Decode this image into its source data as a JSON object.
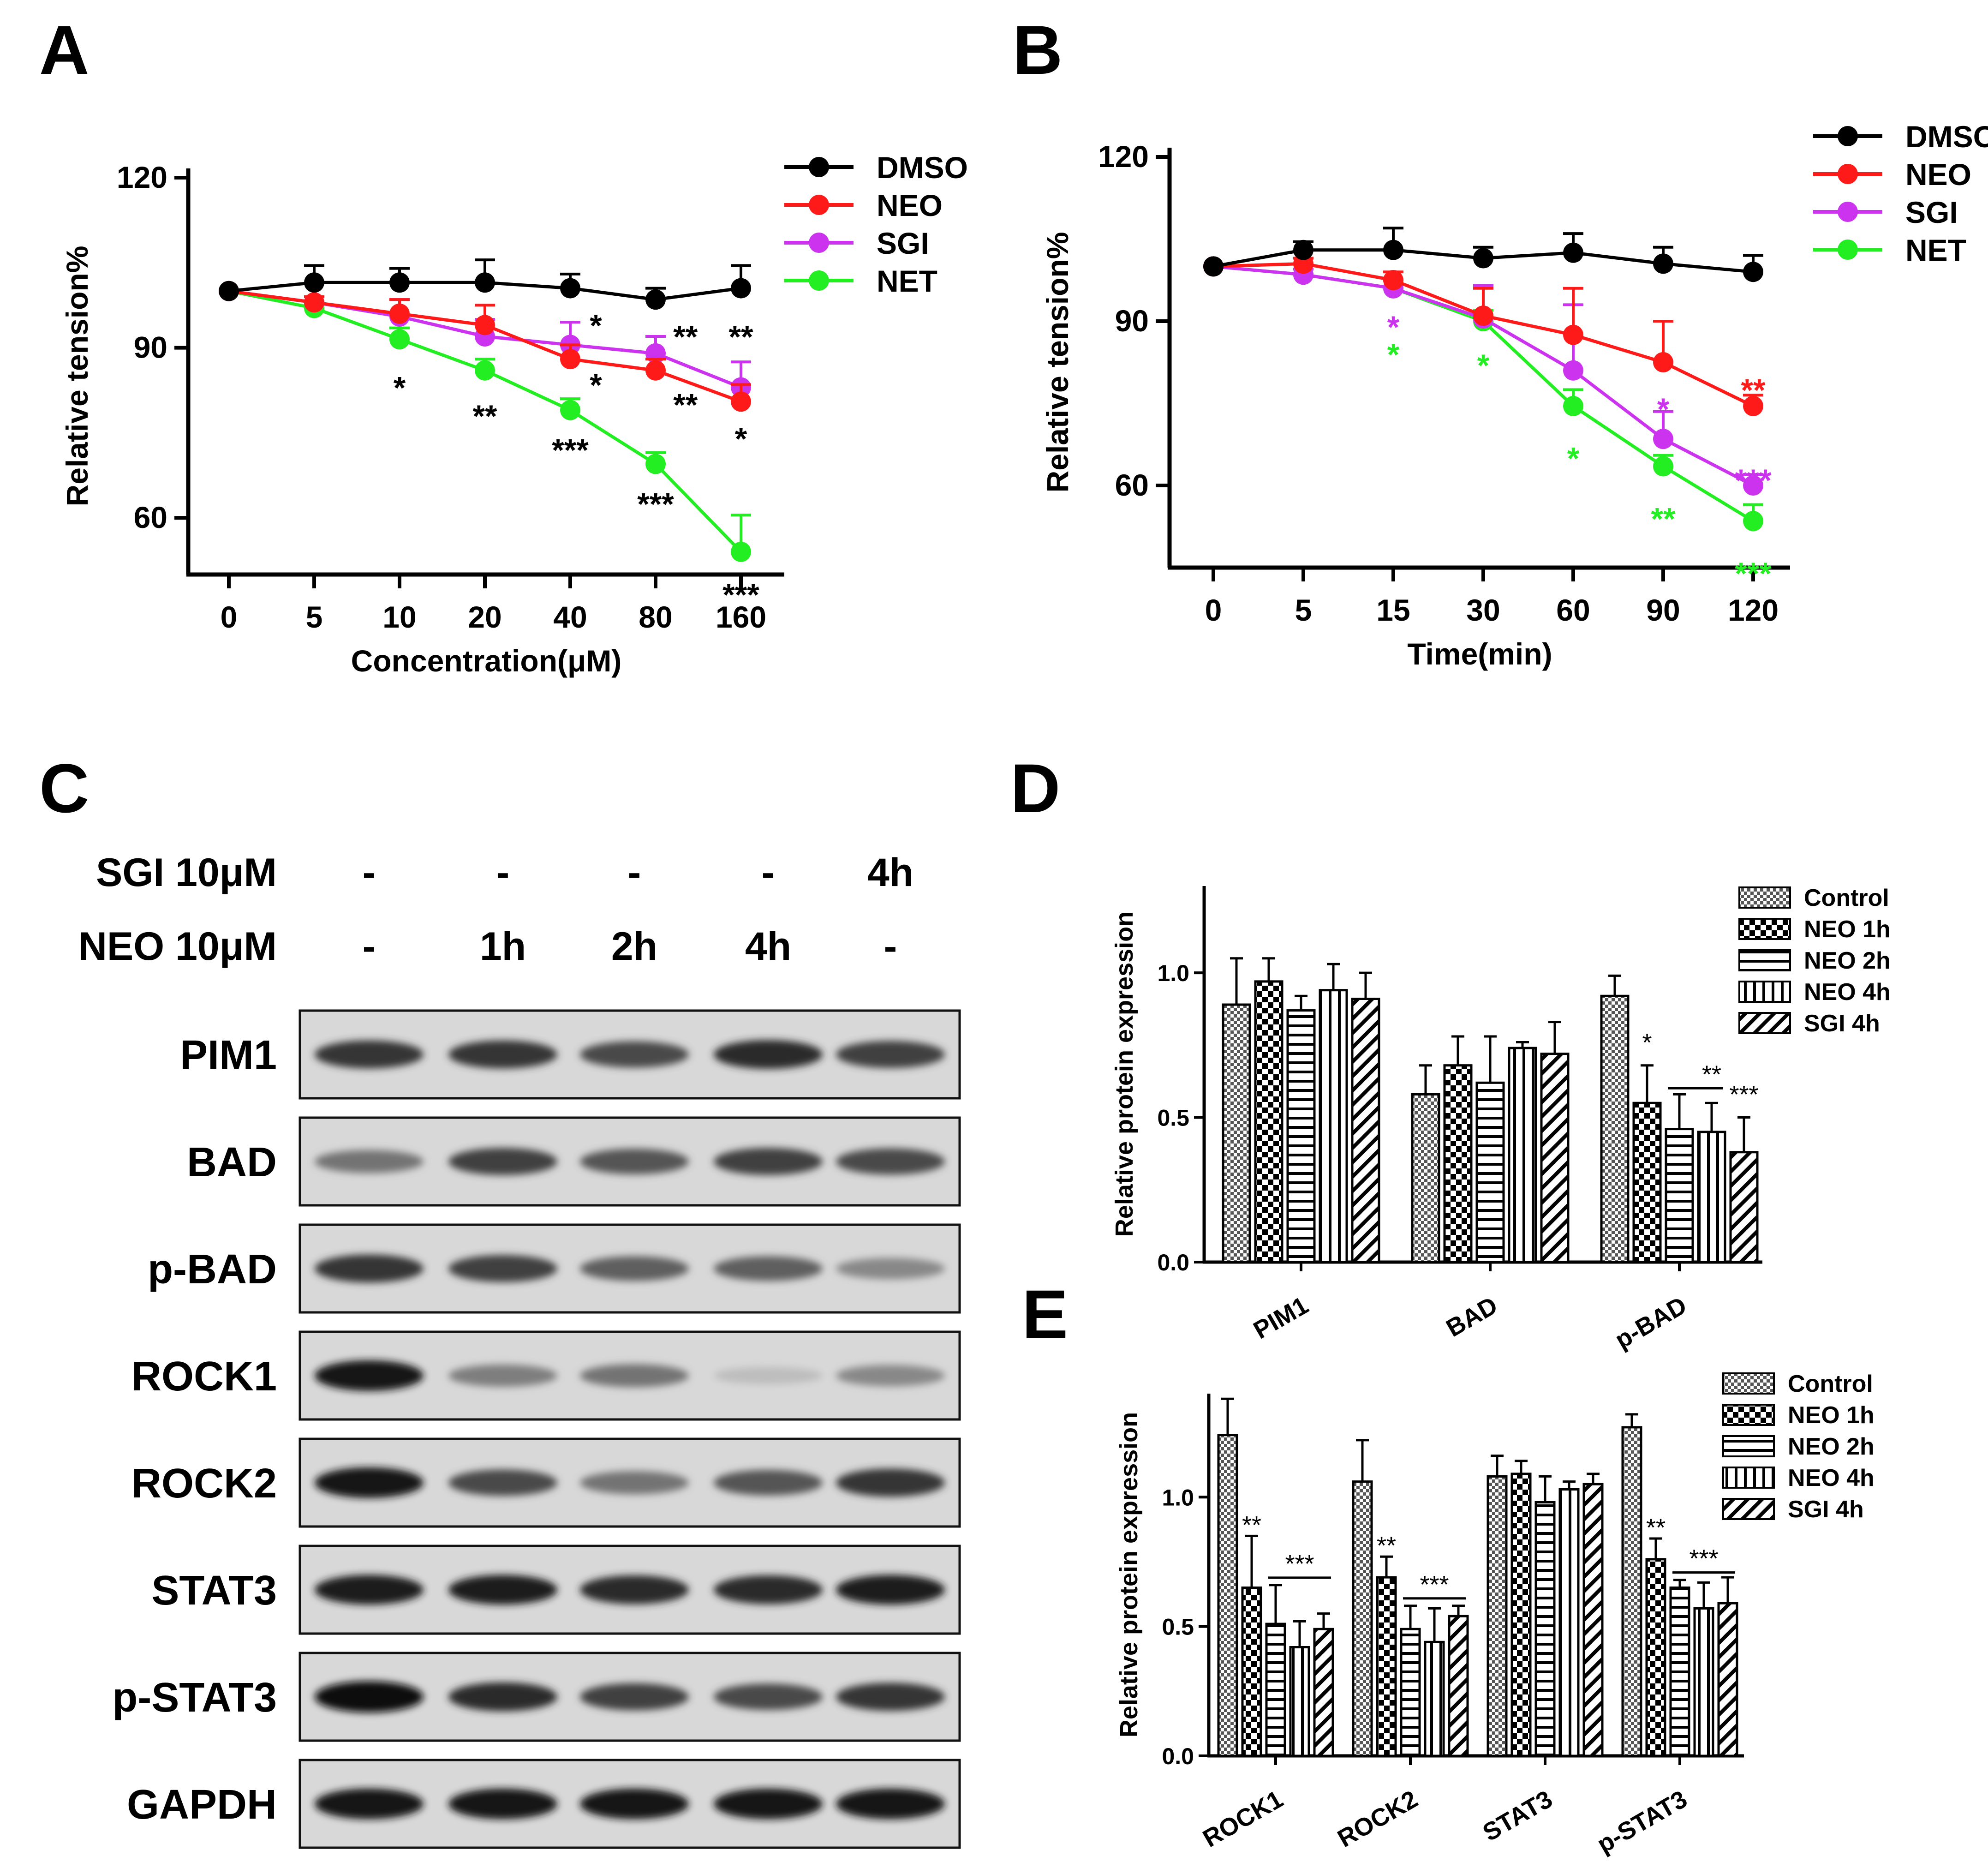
{
  "colors": {
    "dmso": "#000000",
    "neo": "#ff1a1a",
    "sgi": "#cc33ee",
    "net": "#22ee22",
    "axis": "#000000"
  },
  "panels": {
    "a": "A",
    "b": "B",
    "c": "C",
    "d": "D",
    "e": "E"
  },
  "chart_data": [
    {
      "id": "A",
      "type": "line",
      "xlabel": "Concentration(μM)",
      "ylabel": "Relative tension%",
      "categories": [
        "0",
        "5",
        "10",
        "20",
        "40",
        "80",
        "160"
      ],
      "ylim": [
        50,
        120
      ],
      "yticks": [
        60,
        90,
        120
      ],
      "legend_position": "top-right",
      "series": [
        {
          "name": "DMSO",
          "color": "#000000",
          "values": [
            100,
            101.5,
            101.5,
            101.5,
            100.5,
            98.5,
            100.5
          ],
          "err": [
            0,
            3,
            2.5,
            4,
            2.5,
            2,
            4
          ]
        },
        {
          "name": "NEO",
          "color": "#ff1a1a",
          "values": [
            100,
            98,
            96,
            94,
            88,
            86,
            80.5
          ],
          "err": [
            0,
            1,
            2.5,
            3.5,
            2.5,
            2,
            3
          ]
        },
        {
          "name": "SGI",
          "color": "#cc33ee",
          "values": [
            100,
            98,
            95.5,
            92,
            90.5,
            89,
            83
          ],
          "err": [
            0,
            1,
            3,
            3,
            4,
            3,
            4.5
          ]
        },
        {
          "name": "NET",
          "color": "#22ee22",
          "values": [
            100,
            97,
            91.5,
            86,
            79,
            69.5,
            54
          ],
          "err": [
            0,
            1,
            2,
            2,
            2,
            2,
            6.5
          ]
        }
      ],
      "annotations": [
        {
          "text": "*",
          "cat": 2,
          "y": 83.5,
          "color": "#000000"
        },
        {
          "text": "**",
          "cat": 3,
          "y": 78.5,
          "color": "#000000"
        },
        {
          "text": "*",
          "cat": 4,
          "y": 94.5,
          "color": "#000000",
          "dx": 0.3
        },
        {
          "text": "*",
          "cat": 4,
          "y": 84,
          "color": "#000000",
          "dx": 0.3
        },
        {
          "text": "***",
          "cat": 4,
          "y": 72.5,
          "color": "#000000"
        },
        {
          "text": "**",
          "cat": 5,
          "y": 92.5,
          "color": "#000000",
          "dx": 0.35
        },
        {
          "text": "**",
          "cat": 5,
          "y": 80.5,
          "color": "#000000",
          "dx": 0.35
        },
        {
          "text": "***",
          "cat": 5,
          "y": 63,
          "color": "#000000"
        },
        {
          "text": "**",
          "cat": 6,
          "y": 92.5,
          "color": "#000000"
        },
        {
          "text": "*",
          "cat": 6,
          "y": 74.5,
          "color": "#000000"
        },
        {
          "text": "***",
          "cat": 6,
          "y": 47,
          "color": "#000000"
        }
      ]
    },
    {
      "id": "B",
      "type": "line",
      "xlabel": "Time(min)",
      "ylabel": "Relative tension%",
      "categories": [
        "0",
        "5",
        "15",
        "30",
        "60",
        "90",
        "120"
      ],
      "ylim": [
        45,
        120
      ],
      "yticks": [
        60,
        90,
        120
      ],
      "legend_position": "top-right",
      "series": [
        {
          "name": "DMSO",
          "color": "#000000",
          "values": [
            100,
            103,
            103,
            101.5,
            102.5,
            100.5,
            99
          ],
          "err": [
            0,
            1.5,
            4,
            2,
            3.5,
            3,
            3
          ]
        },
        {
          "name": "NEO",
          "color": "#ff1a1a",
          "values": [
            100,
            100.5,
            97.5,
            91,
            87.5,
            82.5,
            74.5
          ],
          "err": [
            0,
            1,
            1.5,
            5,
            8.5,
            7.5,
            2
          ]
        },
        {
          "name": "SGI",
          "color": "#cc33ee",
          "values": [
            100,
            98.5,
            96,
            90.5,
            81,
            68.5,
            60
          ],
          "err": [
            0,
            1,
            1.5,
            6,
            12,
            5,
            2
          ]
        },
        {
          "name": "NET",
          "color": "#22ee22",
          "values": [
            100,
            98.5,
            96,
            90,
            74.5,
            63.5,
            53.5
          ],
          "err": [
            0,
            1,
            1.5,
            2,
            3,
            2,
            3
          ]
        }
      ],
      "annotations": [
        {
          "text": "*",
          "cat": 2,
          "y": 89.5,
          "color": "#cc33ee"
        },
        {
          "text": "*",
          "cat": 2,
          "y": 84.5,
          "color": "#22ee22"
        },
        {
          "text": "*",
          "cat": 3,
          "y": 82.5,
          "color": "#22ee22"
        },
        {
          "text": "*",
          "cat": 4,
          "y": 65.5,
          "color": "#22ee22"
        },
        {
          "text": "*",
          "cat": 5,
          "y": 74.5,
          "color": "#cc33ee"
        },
        {
          "text": "**",
          "cat": 5,
          "y": 54.5,
          "color": "#22ee22"
        },
        {
          "text": "**",
          "cat": 6,
          "y": 78,
          "color": "#ff1a1a"
        },
        {
          "text": "***",
          "cat": 6,
          "y": 61.5,
          "color": "#cc33ee"
        },
        {
          "text": "***",
          "cat": 6,
          "y": 44.5,
          "color": "#22ee22"
        }
      ]
    },
    {
      "id": "D",
      "type": "bar",
      "ylabel": "Relative protein expression",
      "categories": [
        "PIM1",
        "BAD",
        "p-BAD"
      ],
      "ylim": [
        0,
        1.3
      ],
      "yticks": [
        "0.0",
        "0.5",
        "1.0"
      ],
      "legend_position": "top-right",
      "series": [
        {
          "name": "Control",
          "pattern": "pat-check",
          "values": [
            0.89,
            0.58,
            0.92
          ],
          "err": [
            0.16,
            0.1,
            0.07
          ]
        },
        {
          "name": "NEO 1h",
          "pattern": "pat-bigcheck",
          "values": [
            0.97,
            0.68,
            0.55
          ],
          "err": [
            0.08,
            0.1,
            0.13
          ]
        },
        {
          "name": "NEO 2h",
          "pattern": "pat-hline",
          "values": [
            0.87,
            0.62,
            0.46
          ],
          "err": [
            0.05,
            0.16,
            0.12
          ]
        },
        {
          "name": "NEO 4h",
          "pattern": "pat-vline",
          "values": [
            0.94,
            0.74,
            0.45
          ],
          "err": [
            0.09,
            0.02,
            0.1
          ]
        },
        {
          "name": "SGI 4h",
          "pattern": "pat-diag",
          "values": [
            0.91,
            0.72,
            0.38
          ],
          "err": [
            0.09,
            0.11,
            0.12
          ]
        }
      ],
      "annotations": [
        {
          "text": "*",
          "group": 2,
          "bar": 1,
          "y": 0.73
        },
        {
          "text": "**",
          "group": 2,
          "bar": 3,
          "y": 0.62,
          "line_from": 2,
          "line_to": 3
        },
        {
          "text": "***",
          "group": 2,
          "bar": 4,
          "y": 0.55
        }
      ]
    },
    {
      "id": "E",
      "type": "bar",
      "ylabel": "Relative protein expression",
      "categories": [
        "ROCK1",
        "ROCK2",
        "STAT3",
        "p-STAT3"
      ],
      "ylim": [
        0,
        1.4
      ],
      "yticks": [
        "0.0",
        "0.5",
        "1.0"
      ],
      "legend_position": "top-right",
      "series": [
        {
          "name": "Control",
          "pattern": "pat-check",
          "values": [
            1.24,
            1.06,
            1.08,
            1.27
          ],
          "err": [
            0.14,
            0.16,
            0.08,
            0.05
          ]
        },
        {
          "name": "NEO 1h",
          "pattern": "pat-bigcheck",
          "values": [
            0.65,
            0.69,
            1.09,
            0.76
          ],
          "err": [
            0.2,
            0.08,
            0.05,
            0.08
          ]
        },
        {
          "name": "NEO 2h",
          "pattern": "pat-hline",
          "values": [
            0.51,
            0.49,
            0.98,
            0.65
          ],
          "err": [
            0.15,
            0.09,
            0.1,
            0.03
          ]
        },
        {
          "name": "NEO 4h",
          "pattern": "pat-vline",
          "values": [
            0.42,
            0.44,
            1.03,
            0.57
          ],
          "err": [
            0.1,
            0.13,
            0.03,
            0.1
          ]
        },
        {
          "name": "SGI 4h",
          "pattern": "pat-diag",
          "values": [
            0.49,
            0.54,
            1.05,
            0.59
          ],
          "err": [
            0.06,
            0.04,
            0.04,
            0.1
          ]
        }
      ],
      "annotations": [
        {
          "text": "**",
          "group": 0,
          "bar": 1,
          "y": 0.86
        },
        {
          "text": "***",
          "group": 0,
          "bar": 3,
          "y": 0.71,
          "line_from": 2,
          "line_to": 4
        },
        {
          "text": "**",
          "group": 1,
          "bar": 1,
          "y": 0.78
        },
        {
          "text": "***",
          "group": 1,
          "bar": 3,
          "y": 0.63,
          "line_from": 2,
          "line_to": 4
        },
        {
          "text": "**",
          "group": 3,
          "bar": 1,
          "y": 0.85
        },
        {
          "text": "***",
          "group": 3,
          "bar": 3,
          "y": 0.73,
          "line_from": 2,
          "line_to": 4
        }
      ]
    }
  ],
  "blot": {
    "treatments": [
      {
        "label": "SGI 10μM",
        "values": [
          "-",
          "-",
          "-",
          "-",
          "4h"
        ]
      },
      {
        "label": "NEO 10μM",
        "values": [
          "-",
          "1h",
          "2h",
          "4h",
          "-"
        ]
      }
    ],
    "rows": [
      {
        "label": "PIM1",
        "intensity": [
          0.8,
          0.8,
          0.7,
          0.85,
          0.75
        ]
      },
      {
        "label": "BAD",
        "intensity": [
          0.5,
          0.75,
          0.65,
          0.75,
          0.7
        ]
      },
      {
        "label": "p-BAD",
        "intensity": [
          0.8,
          0.75,
          0.6,
          0.6,
          0.4
        ]
      },
      {
        "label": "ROCK1",
        "intensity": [
          0.95,
          0.45,
          0.5,
          0.15,
          0.4
        ]
      },
      {
        "label": "ROCK2",
        "intensity": [
          0.95,
          0.7,
          0.5,
          0.65,
          0.8
        ]
      },
      {
        "label": "STAT3",
        "intensity": [
          0.9,
          0.9,
          0.85,
          0.85,
          0.9
        ]
      },
      {
        "label": "p-STAT3",
        "intensity": [
          1.0,
          0.85,
          0.75,
          0.7,
          0.8
        ]
      },
      {
        "label": "GAPDH",
        "intensity": [
          0.95,
          0.95,
          0.95,
          0.95,
          0.95
        ]
      }
    ]
  }
}
